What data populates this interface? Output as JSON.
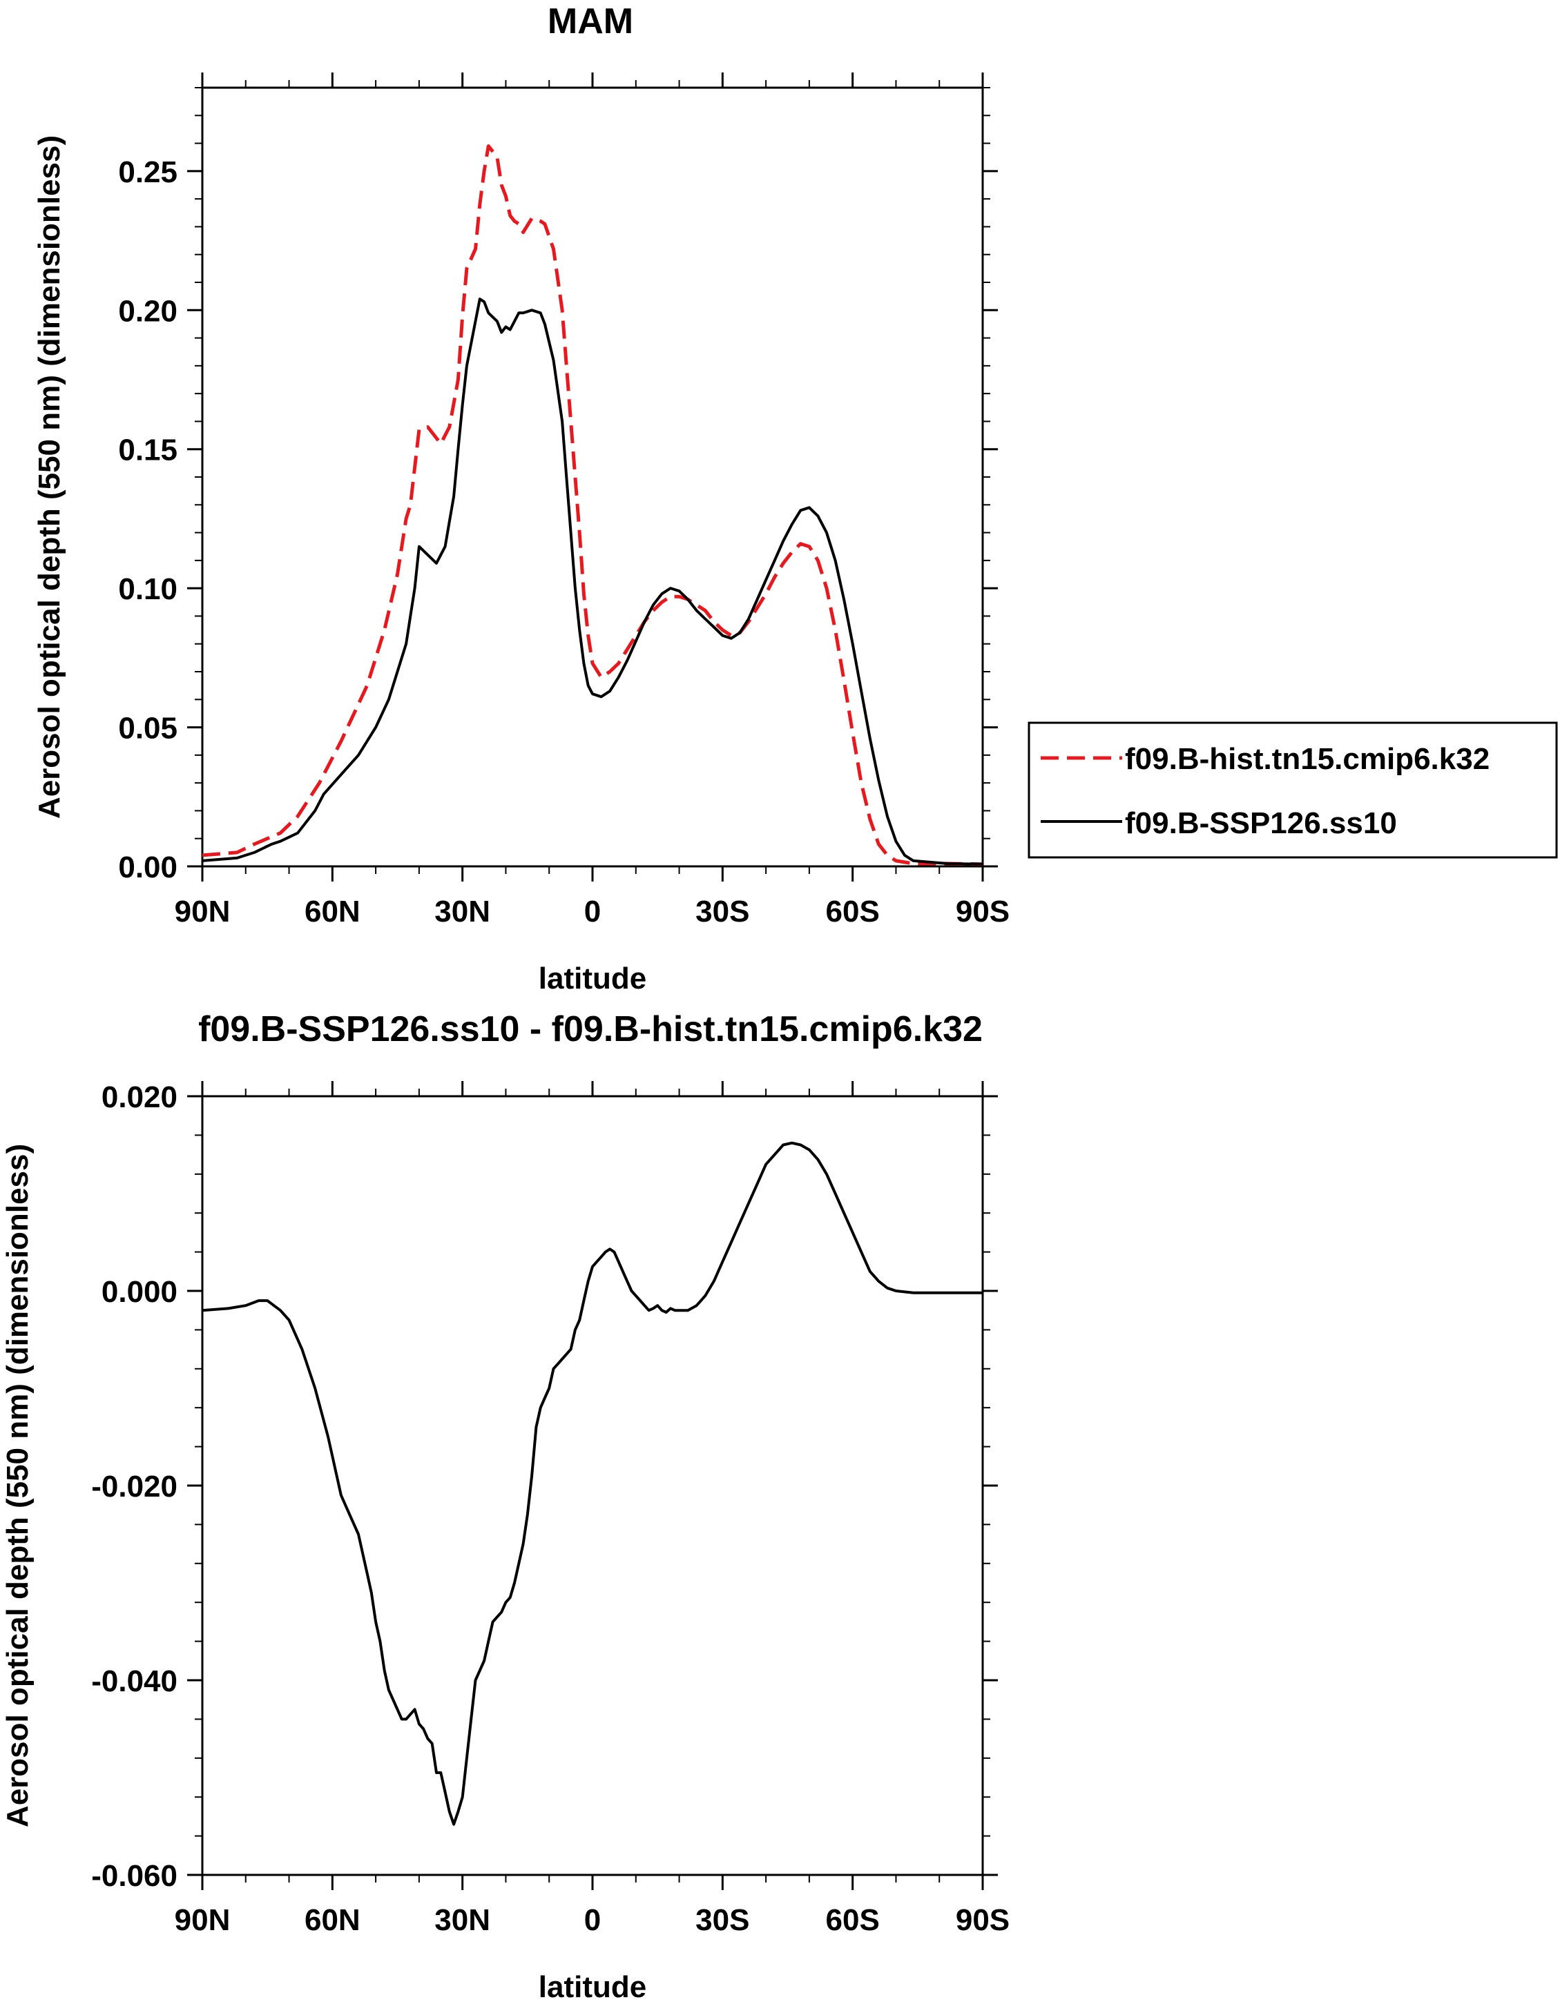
{
  "chart_data": [
    {
      "type": "line",
      "title": "MAM",
      "xlabel": "latitude",
      "ylabel": "Aerosol optical depth (550 nm) (dimensionless)",
      "xlim": [
        90,
        -90
      ],
      "ylim": [
        0,
        0.28
      ],
      "x_ticks": [
        90,
        60,
        30,
        0,
        -30,
        -60,
        -90
      ],
      "x_tick_labels": [
        "90N",
        "60N",
        "30N",
        "0",
        "30S",
        "60S",
        "90S"
      ],
      "y_ticks": [
        0,
        0.05,
        0.1,
        0.15,
        0.2,
        0.25
      ],
      "y_tick_labels": [
        "0.00",
        "0.05",
        "0.10",
        "0.15",
        "0.20",
        "0.25"
      ],
      "legend": {
        "position": "right",
        "entries": [
          "f09.B-hist.tn15.cmip6.k32",
          "f09.B-SSP126.ss10"
        ]
      },
      "series": [
        {
          "name": "f09.B-hist.tn15.cmip6.k32",
          "color": "#e8191e",
          "dash": "dashed",
          "x": [
            90,
            82,
            78,
            72,
            68,
            63,
            58,
            52,
            48,
            45,
            43,
            42,
            40,
            38,
            35,
            33,
            31,
            30,
            29,
            27,
            26,
            25,
            24,
            22,
            21,
            20,
            19,
            18,
            17,
            16,
            14,
            12,
            11,
            9,
            7,
            6,
            5,
            4,
            3,
            2,
            1,
            0,
            -2,
            -4,
            -6,
            -8,
            -10,
            -12,
            -14,
            -16,
            -18,
            -20,
            -22,
            -24,
            -26,
            -28,
            -30,
            -32,
            -34,
            -36,
            -38,
            -40,
            -42,
            -44,
            -46,
            -48,
            -50,
            -52,
            -54,
            -56,
            -58,
            -60,
            -62,
            -64,
            -66,
            -68,
            -70,
            -72,
            -74,
            -78,
            -82,
            -90
          ],
          "y": [
            0.004,
            0.005,
            0.008,
            0.012,
            0.018,
            0.03,
            0.045,
            0.065,
            0.085,
            0.105,
            0.125,
            0.13,
            0.157,
            0.158,
            0.152,
            0.158,
            0.175,
            0.198,
            0.215,
            0.222,
            0.238,
            0.25,
            0.259,
            0.255,
            0.245,
            0.241,
            0.234,
            0.232,
            0.231,
            0.228,
            0.233,
            0.232,
            0.231,
            0.222,
            0.2,
            0.18,
            0.16,
            0.14,
            0.12,
            0.098,
            0.083,
            0.073,
            0.068,
            0.07,
            0.073,
            0.078,
            0.083,
            0.088,
            0.092,
            0.095,
            0.097,
            0.097,
            0.096,
            0.094,
            0.092,
            0.088,
            0.085,
            0.083,
            0.084,
            0.088,
            0.093,
            0.098,
            0.104,
            0.109,
            0.113,
            0.116,
            0.115,
            0.11,
            0.1,
            0.085,
            0.067,
            0.048,
            0.03,
            0.017,
            0.008,
            0.004,
            0.002,
            0.0015,
            0.001,
            0.001,
            0.001,
            0.0008
          ]
        },
        {
          "name": "f09.B-SSP126.ss10",
          "color": "#000000",
          "dash": "solid",
          "x": [
            90,
            82,
            78,
            74,
            72,
            68,
            64,
            62,
            58,
            54,
            50,
            47,
            45,
            43,
            42,
            41,
            40,
            38,
            36,
            34,
            33,
            32,
            31,
            30,
            29,
            28,
            27,
            26,
            25,
            24,
            22,
            21,
            20,
            19,
            18,
            17,
            16,
            14,
            12,
            11,
            9,
            7,
            6,
            5,
            4,
            3,
            2,
            1,
            0,
            -2,
            -4,
            -6,
            -8,
            -10,
            -12,
            -14,
            -16,
            -18,
            -20,
            -22,
            -24,
            -26,
            -28,
            -30,
            -32,
            -34,
            -36,
            -38,
            -40,
            -42,
            -44,
            -46,
            -48,
            -50,
            -52,
            -54,
            -56,
            -58,
            -60,
            -62,
            -64,
            -66,
            -68,
            -70,
            -72,
            -74,
            -78,
            -82,
            -90
          ],
          "y": [
            0.002,
            0.003,
            0.005,
            0.008,
            0.009,
            0.012,
            0.02,
            0.026,
            0.033,
            0.04,
            0.05,
            0.06,
            0.07,
            0.08,
            0.09,
            0.1,
            0.115,
            0.112,
            0.109,
            0.115,
            0.124,
            0.133,
            0.15,
            0.166,
            0.18,
            0.188,
            0.196,
            0.204,
            0.203,
            0.199,
            0.196,
            0.192,
            0.194,
            0.193,
            0.196,
            0.199,
            0.199,
            0.2,
            0.199,
            0.195,
            0.182,
            0.16,
            0.14,
            0.12,
            0.1,
            0.085,
            0.073,
            0.065,
            0.062,
            0.061,
            0.063,
            0.068,
            0.074,
            0.081,
            0.088,
            0.094,
            0.098,
            0.1,
            0.099,
            0.096,
            0.092,
            0.089,
            0.086,
            0.083,
            0.082,
            0.084,
            0.089,
            0.096,
            0.103,
            0.11,
            0.117,
            0.123,
            0.128,
            0.129,
            0.126,
            0.12,
            0.11,
            0.096,
            0.08,
            0.063,
            0.046,
            0.031,
            0.018,
            0.009,
            0.004,
            0.002,
            0.0015,
            0.001,
            0.0008
          ]
        }
      ]
    },
    {
      "type": "line",
      "title": "f09.B-SSP126.ss10 - f09.B-hist.tn15.cmip6.k32",
      "xlabel": "latitude",
      "ylabel": "Aerosol optical depth (550 nm) (dimensionless)",
      "xlim": [
        90,
        -90
      ],
      "ylim": [
        -0.06,
        0.02
      ],
      "x_ticks": [
        90,
        60,
        30,
        0,
        -30,
        -60,
        -90
      ],
      "x_tick_labels": [
        "90N",
        "60N",
        "30N",
        "0",
        "30S",
        "60S",
        "90S"
      ],
      "y_ticks": [
        -0.06,
        -0.04,
        -0.02,
        0.0,
        0.02
      ],
      "y_tick_labels": [
        "-0.060",
        "-0.040",
        "-0.020",
        "0.000",
        "0.020"
      ],
      "series": [
        {
          "name": "f09.B-SSP126.ss10 - f09.B-hist.tn15.cmip6.k32",
          "color": "#000000",
          "dash": "solid",
          "x": [
            90,
            84,
            80,
            77,
            75,
            72,
            70,
            67,
            64,
            61,
            58,
            56,
            54,
            52,
            51,
            50,
            49,
            48,
            47,
            46,
            45,
            44,
            43,
            42,
            41,
            40,
            39,
            38,
            37,
            36,
            35,
            34,
            33,
            32,
            31,
            30,
            29,
            28,
            27,
            26,
            25,
            24,
            23,
            22,
            21,
            20,
            19,
            18,
            17,
            16,
            15,
            14,
            13,
            12,
            11,
            10,
            9,
            8,
            7,
            6,
            5,
            4,
            3,
            2,
            1,
            0,
            -1,
            -2,
            -3,
            -4,
            -5,
            -6,
            -7,
            -8,
            -9,
            -10,
            -11,
            -12,
            -13,
            -14,
            -15,
            -16,
            -17,
            -18,
            -19,
            -20,
            -22,
            -24,
            -26,
            -28,
            -30,
            -32,
            -34,
            -36,
            -38,
            -40,
            -42,
            -44,
            -46,
            -48,
            -50,
            -52,
            -54,
            -56,
            -58,
            -60,
            -62,
            -64,
            -66,
            -68,
            -70,
            -72,
            -74,
            -76,
            -80,
            -90
          ],
          "y": [
            -0.002,
            -0.0018,
            -0.0015,
            -0.001,
            -0.001,
            -0.002,
            -0.003,
            -0.006,
            -0.01,
            -0.015,
            -0.021,
            -0.023,
            -0.025,
            -0.029,
            -0.031,
            -0.034,
            -0.036,
            -0.039,
            -0.041,
            -0.042,
            -0.043,
            -0.044,
            -0.044,
            -0.0435,
            -0.043,
            -0.0445,
            -0.045,
            -0.046,
            -0.0465,
            -0.0495,
            -0.0495,
            -0.0515,
            -0.0535,
            -0.0548,
            -0.0535,
            -0.052,
            -0.048,
            -0.044,
            -0.04,
            -0.039,
            -0.038,
            -0.036,
            -0.034,
            -0.0335,
            -0.033,
            -0.032,
            -0.0315,
            -0.03,
            -0.028,
            -0.026,
            -0.023,
            -0.019,
            -0.014,
            -0.012,
            -0.011,
            -0.01,
            -0.008,
            -0.0075,
            -0.007,
            -0.0065,
            -0.006,
            -0.004,
            -0.003,
            -0.001,
            0.001,
            0.0025,
            0.003,
            0.0035,
            0.004,
            0.0043,
            0.004,
            0.003,
            0.002,
            0.001,
            0.0,
            -0.0005,
            -0.001,
            -0.0015,
            -0.002,
            -0.0018,
            -0.0015,
            -0.002,
            -0.0022,
            -0.0018,
            -0.002,
            -0.002,
            -0.002,
            -0.0015,
            -0.0005,
            0.001,
            0.003,
            0.005,
            0.007,
            0.009,
            0.011,
            0.013,
            0.014,
            0.015,
            0.0152,
            0.015,
            0.0145,
            0.0135,
            0.012,
            0.01,
            0.008,
            0.006,
            0.004,
            0.002,
            0.001,
            0.0003,
            0.0,
            -0.0001,
            -0.0002,
            -0.0002,
            -0.0002,
            -0.0002
          ]
        }
      ]
    }
  ]
}
